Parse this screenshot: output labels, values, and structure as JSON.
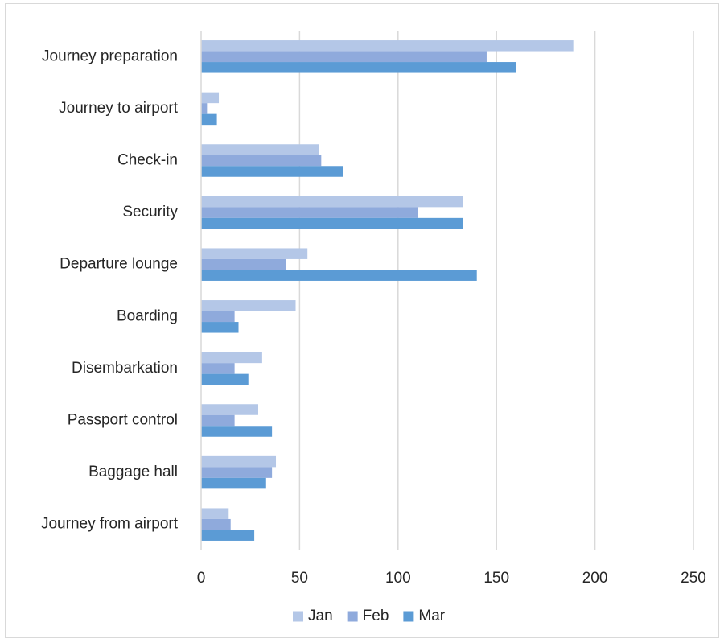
{
  "chart_data": {
    "type": "bar",
    "orientation": "horizontal",
    "categories": [
      "Journey preparation",
      "Journey to airport",
      "Check-in",
      "Security",
      "Departure lounge",
      "Boarding",
      "Disembarkation",
      "Passport control",
      "Baggage hall",
      "Journey from airport"
    ],
    "series": [
      {
        "name": "Jan",
        "color": "#b4c7e7",
        "values": [
          189,
          9,
          60,
          133,
          54,
          48,
          31,
          29,
          38,
          14
        ]
      },
      {
        "name": "Feb",
        "color": "#8faadc",
        "values": [
          145,
          3,
          61,
          110,
          43,
          17,
          17,
          17,
          36,
          15
        ]
      },
      {
        "name": "Mar",
        "color": "#5b9bd5",
        "values": [
          160,
          8,
          72,
          133,
          140,
          19,
          24,
          36,
          33,
          27
        ]
      }
    ],
    "xlim": [
      0,
      250
    ],
    "xticks": [
      0,
      50,
      100,
      150,
      200,
      250
    ],
    "grid": true,
    "legend_position": "bottom",
    "title": "",
    "xlabel": "",
    "ylabel": ""
  }
}
